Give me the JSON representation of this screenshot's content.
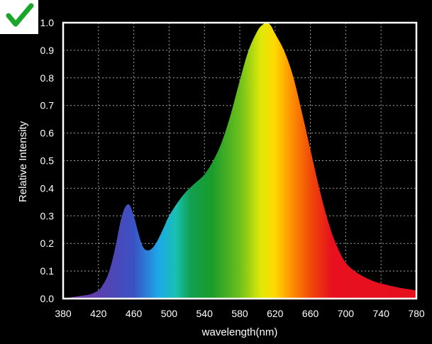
{
  "badge": {
    "icon": "check-mark-icon",
    "color": "#1aa62a"
  },
  "colors": {
    "background": "#000000",
    "frame": "#ffffff",
    "grid": "#d8d8d8",
    "text": "#ffffff"
  },
  "chart_data": {
    "type": "area",
    "xlabel": "wavelength(nm)",
    "ylabel": "Relative Intensity",
    "xlim": [
      380,
      780
    ],
    "ylim": [
      0,
      1.0
    ],
    "x_ticks": [
      380,
      420,
      460,
      500,
      540,
      580,
      620,
      660,
      700,
      740,
      780
    ],
    "y_ticks": [
      0.0,
      0.1,
      0.2,
      0.3,
      0.4,
      0.5,
      0.6,
      0.7,
      0.8,
      0.9,
      1.0
    ],
    "y_tick_labels": [
      "0.0",
      "0.1",
      "0.2",
      "0.3",
      "0.4",
      "0.5",
      "0.6",
      "0.7",
      "0.8",
      "0.9",
      "1.0"
    ],
    "grid": true,
    "fill": "visible-spectrum gradient",
    "series": [
      {
        "x": [
          380,
          390,
          400,
          410,
          420,
          425,
          430,
          435,
          440,
          445,
          450,
          455,
          460,
          465,
          470,
          475,
          480,
          485,
          490,
          495,
          500,
          510,
          520,
          530,
          540,
          550,
          560,
          570,
          580,
          590,
          600,
          605,
          610,
          615,
          620,
          630,
          640,
          650,
          660,
          670,
          680,
          690,
          700,
          710,
          720,
          730,
          740,
          760,
          780
        ],
        "y": [
          0.0,
          0.005,
          0.01,
          0.015,
          0.03,
          0.05,
          0.08,
          0.13,
          0.2,
          0.28,
          0.33,
          0.34,
          0.3,
          0.24,
          0.19,
          0.175,
          0.18,
          0.2,
          0.23,
          0.265,
          0.3,
          0.35,
          0.39,
          0.42,
          0.45,
          0.5,
          0.57,
          0.67,
          0.79,
          0.9,
          0.97,
          0.99,
          1.0,
          0.99,
          0.96,
          0.9,
          0.81,
          0.68,
          0.54,
          0.4,
          0.28,
          0.19,
          0.13,
          0.1,
          0.08,
          0.065,
          0.055,
          0.04,
          0.03
        ]
      }
    ]
  }
}
